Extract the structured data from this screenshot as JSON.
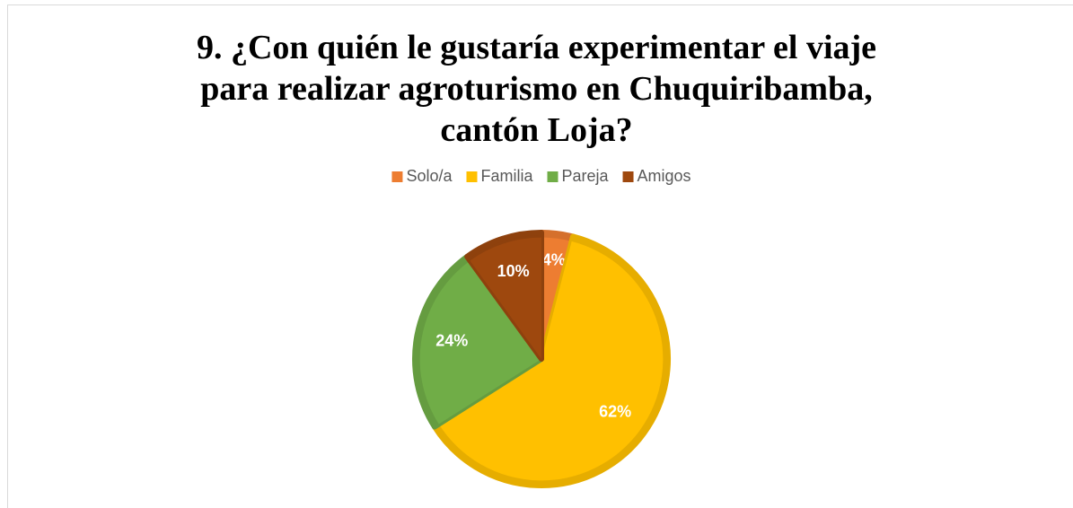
{
  "chart_data": {
    "type": "pie",
    "title": "9. ¿Con quién le gustaría experimentar el viaje para realizar agroturismo en Chuquiribamba, cantón Loja?",
    "categories": [
      "Solo/a",
      "Familia",
      "Pareja",
      "Amigos"
    ],
    "values": [
      4,
      62,
      24,
      10
    ],
    "value_labels": [
      "4%",
      "62%",
      "24%",
      "10%"
    ],
    "colors": [
      "#ED7D31",
      "#FFC000",
      "#70AD47",
      "#9E480E"
    ],
    "legend": "top"
  }
}
